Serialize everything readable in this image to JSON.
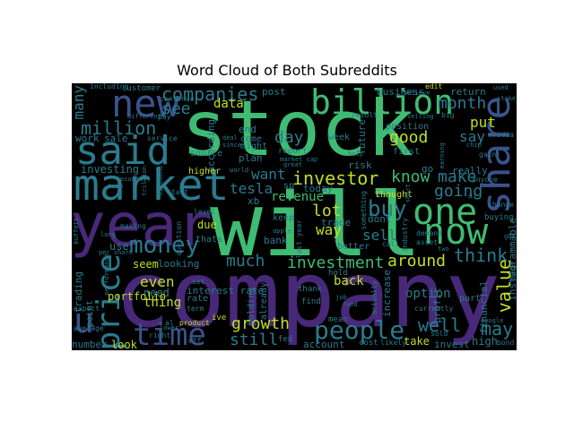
{
  "title": "Word Cloud of Both Subreddits",
  "colors": {
    "purple": "#482878",
    "teal": "#2a7b8e",
    "green": "#3fbc73",
    "yellow": "#c2df23",
    "blue": "#3b528b",
    "lightgreen": "#5ec962"
  },
  "words": {
    "stock": "stock",
    "will": "will",
    "company": "company",
    "year": "year",
    "market": "market",
    "said": "said",
    "new": "new",
    "billion": "billion",
    "one": "one",
    "now": "now",
    "share": "share",
    "people": "people",
    "time": "time",
    "price": "price",
    "money": "money",
    "companies": "companies",
    "million": "million",
    "investor": "investor",
    "buy": "buy",
    "growth": "growth",
    "investment": "investment",
    "around": "around",
    "well": "well",
    "value": "value",
    "may": "may",
    "think": "think",
    "going": "going",
    "make": "make",
    "know": "know",
    "good": "good",
    "month": "month",
    "day": "day",
    "lot": "lot",
    "much": "much",
    "see": "see",
    "data": "data",
    "tesla": "tesla",
    "want": "want",
    "revenue": "revenue",
    "still": "still",
    "sell": "sell",
    "even": "even",
    "u": "u",
    "many": "many",
    "say": "say",
    "put": "put",
    "way": "way",
    "back": "back",
    "option": "option",
    "interest_rate": "interest rate",
    "investing": "investing",
    "financial": "financial",
    "thing": "thing",
    "need": "need",
    "use": "use",
    "seem": "seem",
    "looking": "looking",
    "portfolio": "portfolio",
    "trading": "trading",
    "high": "high",
    "take": "take",
    "look": "look",
    "number": "number",
    "account": "account",
    "invest": "invest",
    "business": "business",
    "return": "return",
    "customer": "customer",
    "post": "post",
    "end": "end",
    "plan": "plan",
    "sale": "sale",
    "work": "work",
    "according": "according",
    "risk": "risk",
    "future": "future",
    "today": "today",
    "trade": "trade",
    "dont": "dont",
    "im": "im",
    "go": "go",
    "really": "really",
    "profit": "profit",
    "increase": "increase",
    "instagrammable": "instagrammable",
    "higher": "higher",
    "rate": "rate",
    "due": "due",
    "bank": "bank",
    "keep": "keep",
    "better": "better",
    "part": "part",
    "point": "point",
    "xb": "xb",
    "sp": "sp",
    "first": "first",
    "position": "position",
    "thought": "thought",
    "week": "week",
    "holding": "holding",
    "already": "already",
    "come": "come",
    "might": "might",
    "source": "source",
    "including": "including",
    "service": "service",
    "continue": "continue",
    "result": "result",
    "big": "big",
    "edit": "edit",
    "used": "used",
    "nvidia": "nvidia",
    "anyone": "anyone",
    "gain": "gain",
    "change": "change",
    "buying": "buying",
    "pay": "pay",
    "level": "level",
    "thats": "thats",
    "fed": "fed",
    "cost": "cost",
    "likely": "likely",
    "bond": "bond",
    "sold": "sold",
    "currently": "currently",
    "demand": "demand",
    "average": "average",
    "expect": "expect",
    "product": "product",
    "ive": "ive",
    "mean": "mean",
    "google": "google",
    "hold": "hold",
    "thank": "thank",
    "find": "find",
    "call": "call",
    "industry": "industry",
    "last_year": "last year",
    "question": "question",
    "set": "set",
    "etf": "etf",
    "apple": "apple",
    "al": "al",
    "term": "term",
    "right": "right",
    "lower": "lower",
    "long": "long",
    "making": "making",
    "start": "start",
    "world": "world",
    "asset": "asset",
    "two": "two",
    "report": "report",
    "market_cap": "market cap",
    "actually": "actually",
    "something": "something",
    "made": "made",
    "short": "short",
    "believe": "believe",
    "selling": "selling",
    "different": "different",
    "earning": "earning",
    "deal": "deal",
    "since": "since",
    "great": "great",
    "stake": "stake",
    "got": "got",
    "performance": "performance",
    "per_share": "per share",
    "buffett": "buffett",
    "trillion": "trillion",
    "economy": "economy",
    "dividend": "dividend",
    "team": "team",
    "chip": "chip",
    "ai": "ai",
    "help": "help",
    "job": "job",
    "fund": "fund"
  }
}
